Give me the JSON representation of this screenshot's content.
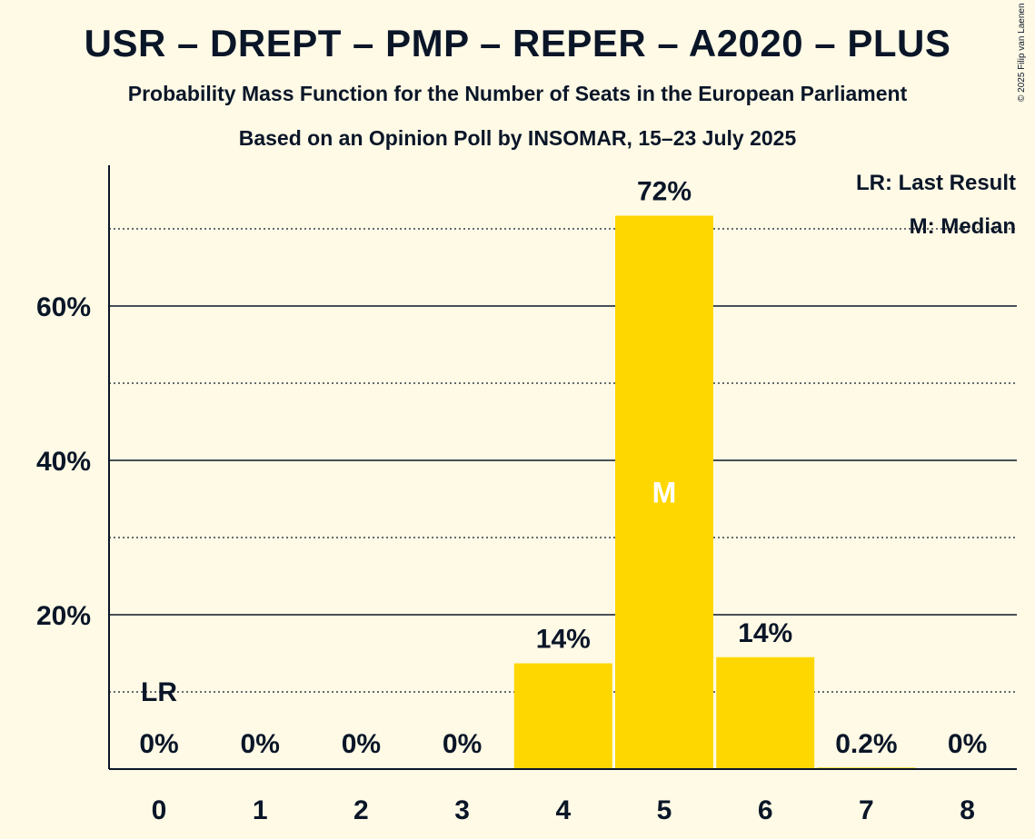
{
  "header": {
    "title": "USR – DREPT – PMP – REPER – A2020 – PLUS",
    "subtitle": "Probability Mass Function for the Number of Seats in the European Parliament",
    "source": "Based on an Opinion Poll by INSOMAR, 15–23 July 2025",
    "copyright": "© 2025 Filip van Laenen"
  },
  "legend": {
    "last_result": "LR: Last Result",
    "median": "M: Median"
  },
  "chart_data": {
    "type": "bar",
    "categories": [
      "0",
      "1",
      "2",
      "3",
      "4",
      "5",
      "6",
      "7",
      "8"
    ],
    "values": [
      0,
      0,
      0,
      0,
      13.7,
      71.7,
      14.5,
      0.2,
      0
    ],
    "labels": [
      "0%",
      "0%",
      "0%",
      "0%",
      "14%",
      "72%",
      "14%",
      "0.2%",
      "0%"
    ],
    "ylim": [
      0,
      78
    ],
    "yticks": [
      {
        "value": 20,
        "label": "20%"
      },
      {
        "value": 40,
        "label": "40%"
      },
      {
        "value": 60,
        "label": "60%"
      }
    ],
    "grid": {
      "solid": [
        20,
        40,
        60
      ],
      "dotted": [
        10,
        30,
        50,
        70
      ]
    },
    "last_result_seats": 0,
    "last_result_marker": "LR",
    "median_seats": 5,
    "median_marker": "M",
    "bar_color": "#FFD700",
    "legend_position": "top-right"
  }
}
